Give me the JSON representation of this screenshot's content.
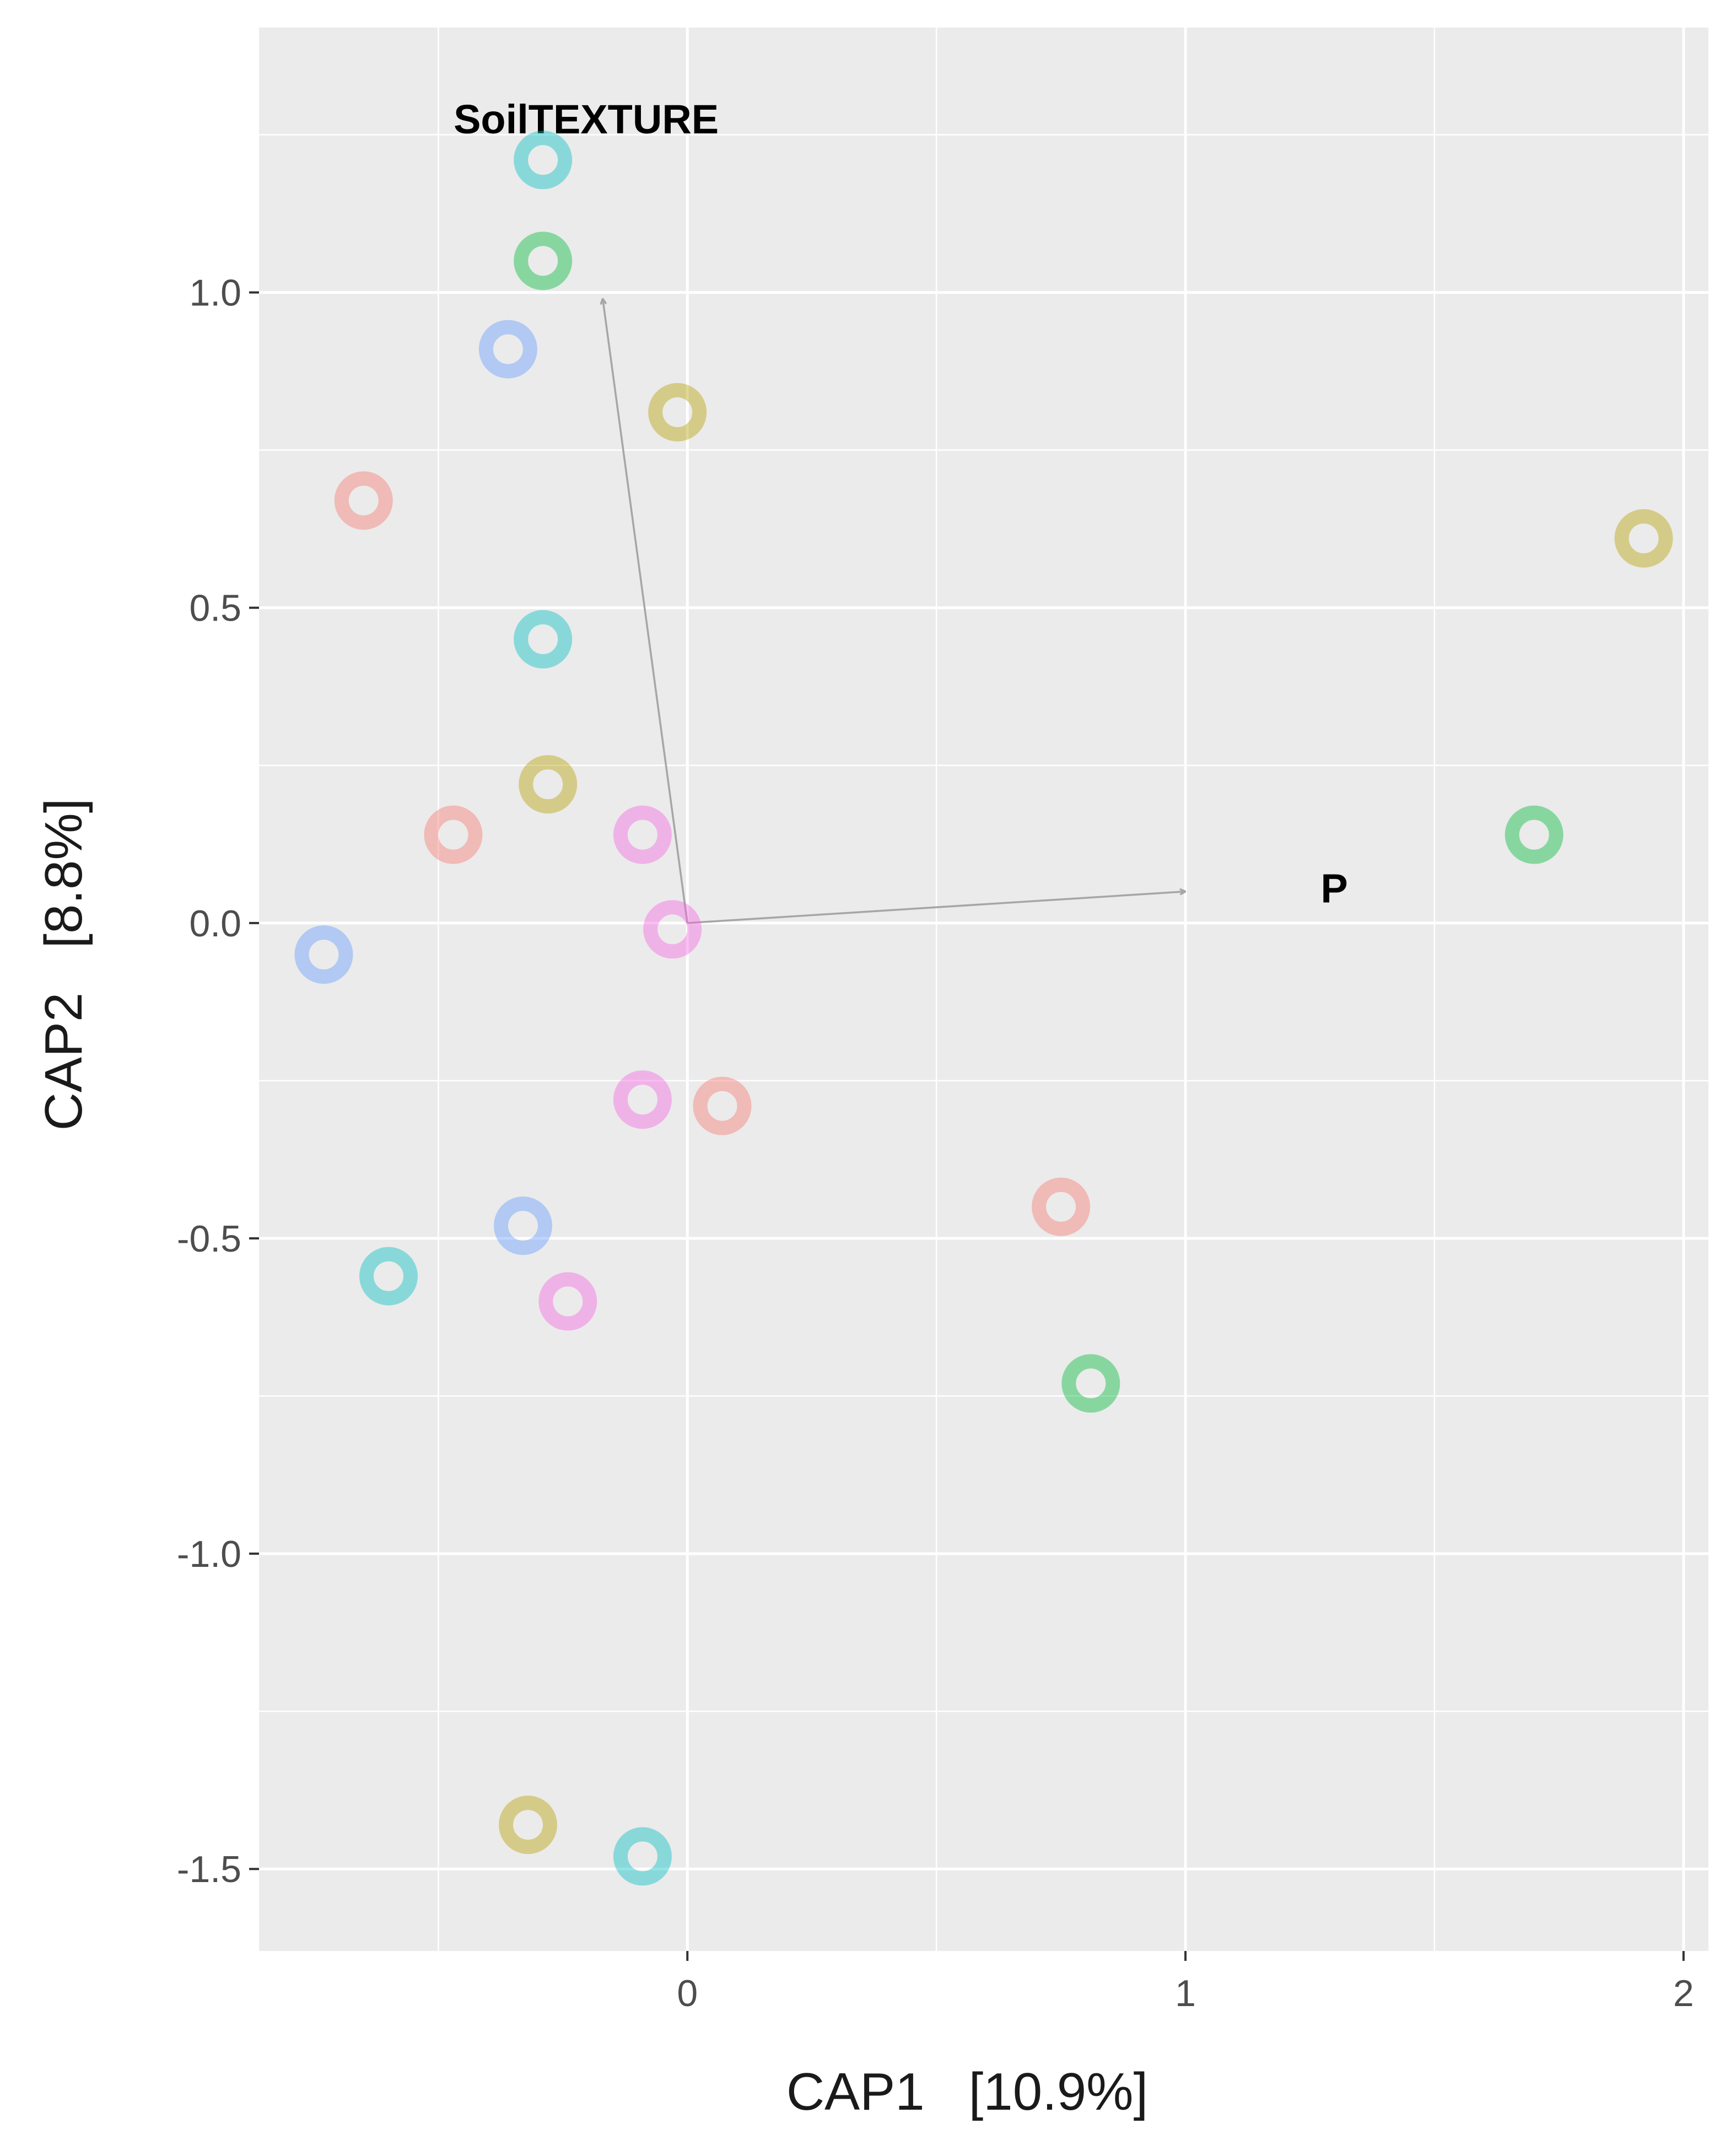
{
  "chart_data": {
    "type": "scatter",
    "title": "",
    "xlabel": "CAP1   [10.9%]",
    "ylabel": "CAP2   [8.8%]",
    "xlim": [
      -0.86,
      2.05
    ],
    "ylim": [
      -1.63,
      1.42
    ],
    "x_ticks": [
      0,
      1,
      2
    ],
    "x_tick_labels": [
      "0",
      "1",
      "2"
    ],
    "y_ticks": [
      1.0,
      0.5,
      0.0,
      -0.5,
      -1.0,
      -1.5
    ],
    "y_tick_labels": [
      "1.0",
      "0.5",
      "0.0",
      "-0.5",
      "-1.0",
      "-1.5"
    ],
    "grid": true,
    "legend": "none",
    "colors": {
      "panel": "#ebebeb",
      "grid": "#ffffff",
      "arrow": "#a6a6a6",
      "red": "#f8766d",
      "olive": "#b79f00",
      "green": "#00ba38",
      "cyan": "#00bfc4",
      "blue": "#619cff",
      "magenta": "#f564e3"
    },
    "vectors": [
      {
        "label": "SoilTEXTURE",
        "x": -0.17,
        "y": 0.99
      },
      {
        "label": "P",
        "x": 1.0,
        "y": 0.05
      }
    ],
    "points": [
      {
        "x": -0.29,
        "y": 1.21,
        "group": "cyan"
      },
      {
        "x": -0.29,
        "y": 1.05,
        "group": "green"
      },
      {
        "x": -0.36,
        "y": 0.91,
        "group": "blue"
      },
      {
        "x": -0.02,
        "y": 0.81,
        "group": "olive"
      },
      {
        "x": -0.65,
        "y": 0.67,
        "group": "red"
      },
      {
        "x": 1.92,
        "y": 0.61,
        "group": "olive"
      },
      {
        "x": -0.29,
        "y": 0.45,
        "group": "cyan"
      },
      {
        "x": -0.28,
        "y": 0.22,
        "group": "olive"
      },
      {
        "x": -0.47,
        "y": 0.14,
        "group": "red"
      },
      {
        "x": -0.09,
        "y": 0.14,
        "group": "magenta"
      },
      {
        "x": 1.7,
        "y": 0.14,
        "group": "green"
      },
      {
        "x": -0.03,
        "y": -0.01,
        "group": "magenta"
      },
      {
        "x": -0.73,
        "y": -0.05,
        "group": "blue"
      },
      {
        "x": -0.09,
        "y": -0.28,
        "group": "magenta"
      },
      {
        "x": 0.07,
        "y": -0.29,
        "group": "red"
      },
      {
        "x": 0.75,
        "y": -0.45,
        "group": "red"
      },
      {
        "x": -0.33,
        "y": -0.48,
        "group": "blue"
      },
      {
        "x": -0.6,
        "y": -0.56,
        "group": "cyan"
      },
      {
        "x": -0.24,
        "y": -0.6,
        "group": "magenta"
      },
      {
        "x": 0.81,
        "y": -0.73,
        "group": "green"
      },
      {
        "x": -0.32,
        "y": -1.43,
        "group": "olive"
      },
      {
        "x": -0.09,
        "y": -1.48,
        "group": "cyan"
      }
    ]
  }
}
